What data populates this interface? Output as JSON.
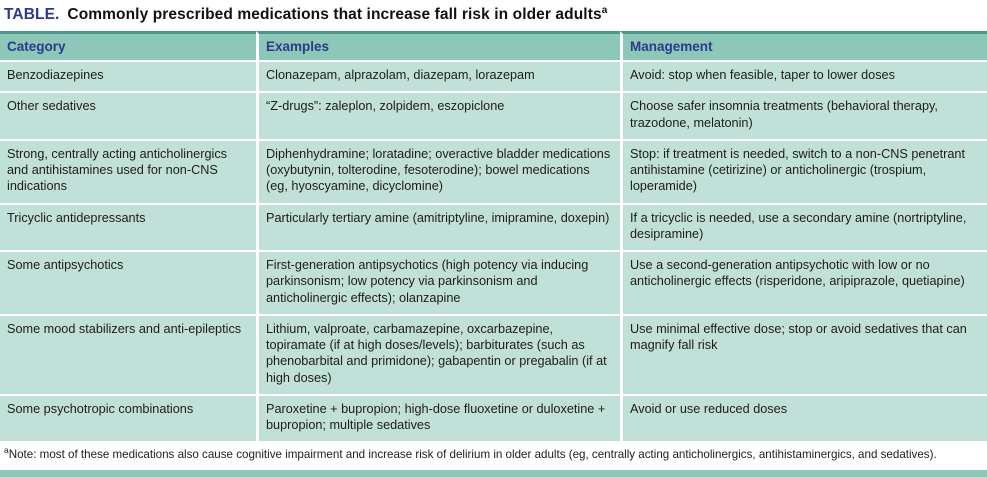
{
  "title": {
    "label": "TABLE.",
    "text": "Commonly prescribed medications that increase fall risk in older adults",
    "superscript": "a"
  },
  "table": {
    "columns": [
      "Category",
      "Examples",
      "Management"
    ],
    "rows": [
      {
        "category": "Benzodiazepines",
        "examples": "Clonazepam, alprazolam, diazepam, lorazepam",
        "management": "Avoid: stop when feasible, taper to lower doses"
      },
      {
        "category": "Other sedatives",
        "examples": "“Z-drugs”: zaleplon, zolpidem, eszopiclone",
        "management": "Choose safer insomnia treatments (behavioral therapy, trazodone, melatonin)"
      },
      {
        "category": "Strong, centrally acting anticholinergics and antihistamines used for non-CNS indications",
        "examples": "Diphenhydramine; loratadine; overactive bladder medications (oxybutynin, tolterodine, fesoterodine); bowel medications (eg, hyoscyamine, dicyclomine)",
        "management": "Stop: if treatment is needed, switch to a non-CNS penetrant antihistamine (cetirizine) or anticholinergic (trospium, loperamide)"
      },
      {
        "category": "Tricyclic antidepressants",
        "examples": "Particularly tertiary amine (amitriptyline, imipramine, doxepin)",
        "management": "If a tricyclic is needed, use a secondary amine (nortriptyline, desipramine)"
      },
      {
        "category": "Some antipsychotics",
        "examples": "First-generation antipsychotics (high potency via inducing parkinsonism; low potency via parkinsonism and anticholinergic effects); olanzapine",
        "management": "Use a second-generation antipsychotic with low or no anticholinergic effects (risperidone, aripiprazole, quetiapine)"
      },
      {
        "category": "Some mood stabilizers and anti-epileptics",
        "examples": "Lithium, valproate, carbamazepine, oxcarbazepine, topiramate (if at high doses/levels); barbiturates (such as phenobarbital and primidone); gabapentin or pregabalin (if at high doses)",
        "management": "Use minimal effective dose; stop or avoid sedatives that can magnify fall risk"
      },
      {
        "category": "Some psychotropic combinations",
        "examples": "Paroxetine + bupropion; high-dose fluoxetine or duloxetine + bupropion; multiple sedatives",
        "management": "Avoid or use reduced doses"
      }
    ]
  },
  "footnote": {
    "superscript": "a",
    "text": "Note: most of these medications also cause cognitive impairment and increase risk of delirium in older adults (eg, centrally acting anticholinergics, antihistaminergics, and sedatives)."
  },
  "colors": {
    "header_bg": "#8cc7b8",
    "row_bg": "#c1e0d7",
    "header_text": "#2d3a8c",
    "title_accent": "#2d3a8c",
    "body_text": "#1d1d1b",
    "divider": "#ffffff",
    "top_border": "#4f978a"
  }
}
